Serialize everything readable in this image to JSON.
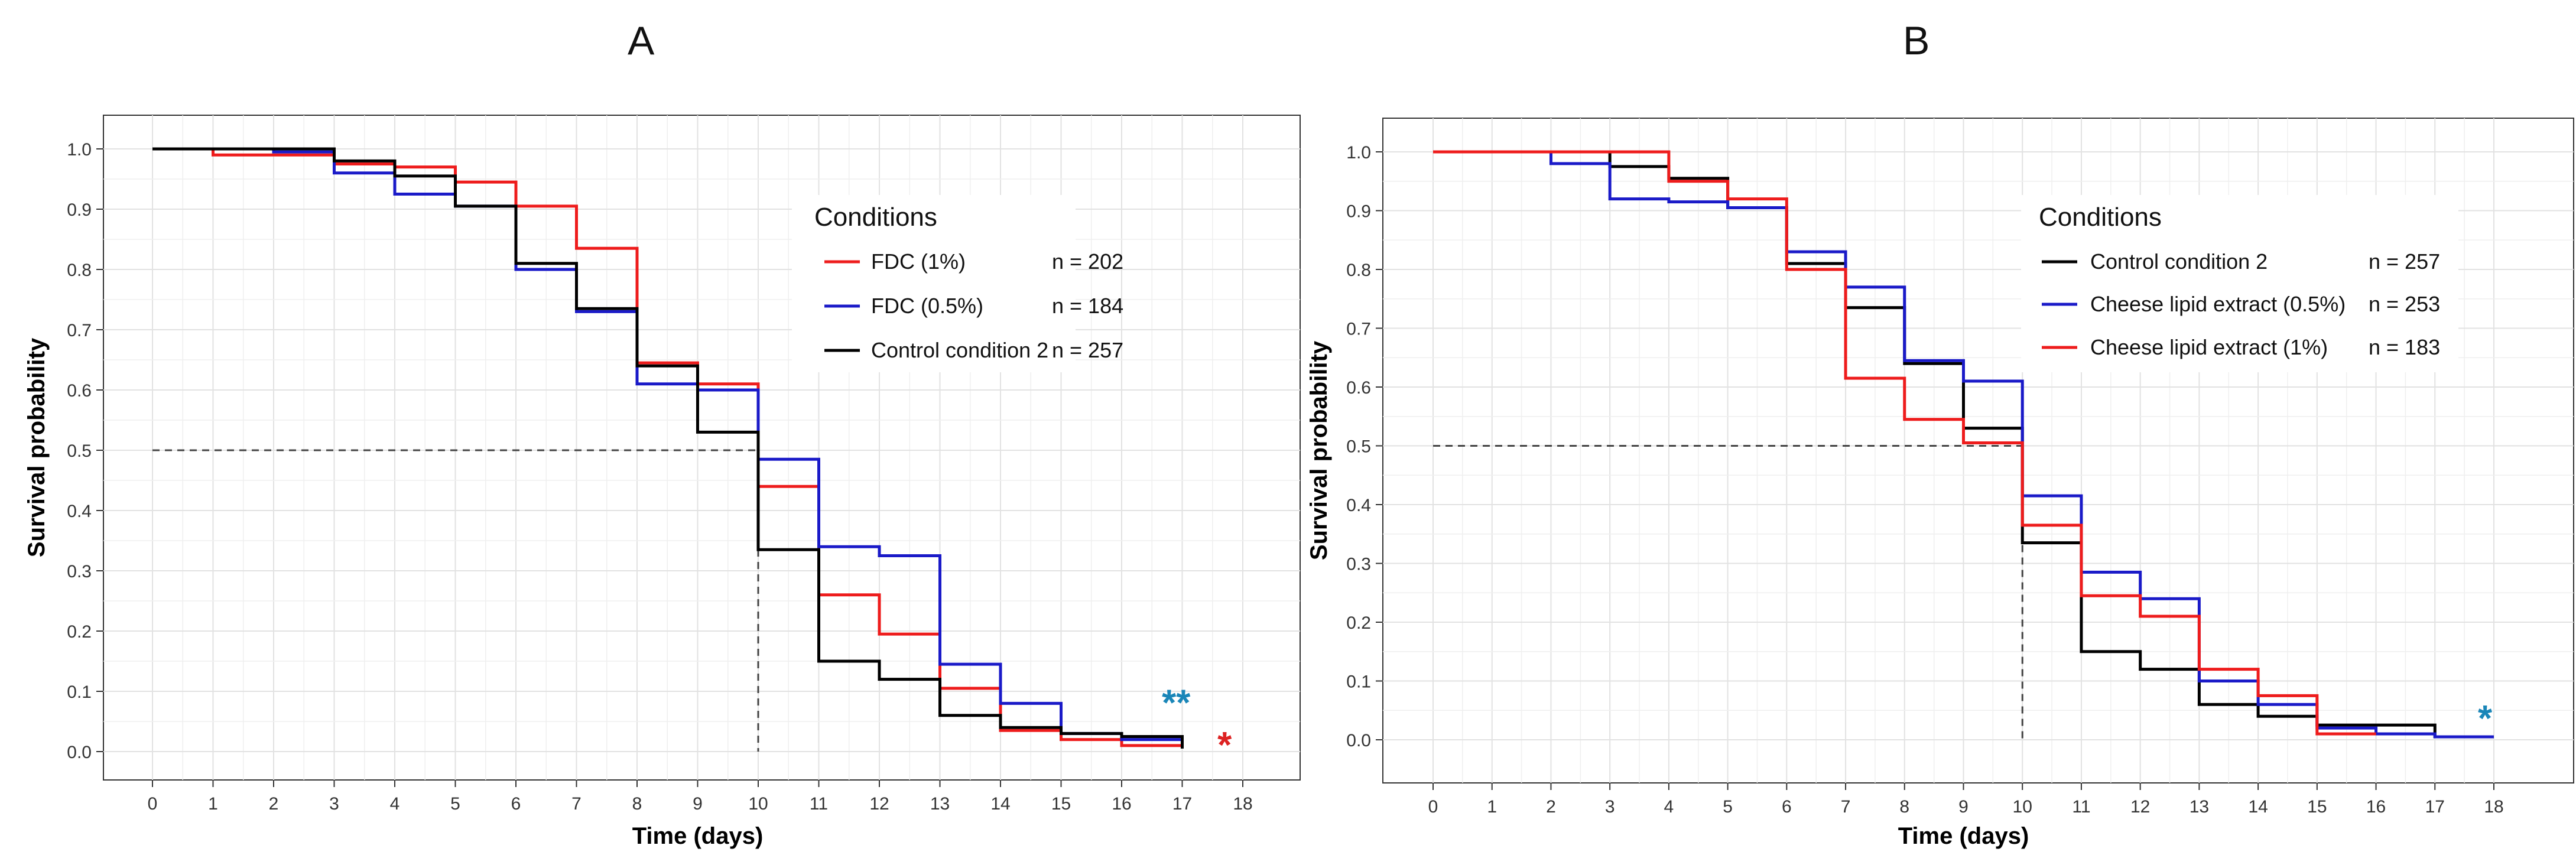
{
  "colors": {
    "red": "#ee1c1c",
    "blue": "#1a1ac8",
    "black": "#000000",
    "teal": "#1a86b8",
    "sig_red": "#dd2222"
  },
  "chart_data": [
    {
      "type": "line",
      "panel": "A",
      "xlabel": "Time (days)",
      "ylabel": "Survival probability",
      "xlim": [
        0,
        18
      ],
      "ylim": [
        0,
        1.0
      ],
      "xticks": [
        "0",
        "1",
        "2",
        "3",
        "4",
        "5",
        "6",
        "7",
        "8",
        "9",
        "10",
        "11",
        "12",
        "13",
        "14",
        "15",
        "16",
        "17",
        "18"
      ],
      "yticks": [
        "0.0",
        "0.1",
        "0.2",
        "0.3",
        "0.4",
        "0.5",
        "0.6",
        "0.7",
        "0.8",
        "0.9",
        "1.0"
      ],
      "grid": true,
      "legend_title": "Conditions",
      "legend_position": "top-right",
      "median_line": {
        "y": 0.5,
        "x": 10
      },
      "series": [
        {
          "name": "FDC (1%)",
          "n_label": "n = 202",
          "color": "red",
          "steps": [
            [
              0,
              1.0
            ],
            [
              1,
              0.99
            ],
            [
              3,
              0.975
            ],
            [
              4,
              0.97
            ],
            [
              5,
              0.945
            ],
            [
              6,
              0.905
            ],
            [
              7,
              0.835
            ],
            [
              8,
              0.645
            ],
            [
              9,
              0.61
            ],
            [
              10,
              0.44
            ],
            [
              11,
              0.26
            ],
            [
              12,
              0.195
            ],
            [
              13,
              0.105
            ],
            [
              14,
              0.035
            ],
            [
              15,
              0.02
            ],
            [
              16,
              0.01
            ],
            [
              17,
              0.01
            ]
          ]
        },
        {
          "name": "FDC (0.5%)",
          "n_label": "n = 184",
          "color": "blue",
          "steps": [
            [
              0,
              1.0
            ],
            [
              2,
              0.995
            ],
            [
              3,
              0.96
            ],
            [
              4,
              0.925
            ],
            [
              5,
              0.905
            ],
            [
              6,
              0.8
            ],
            [
              7,
              0.73
            ],
            [
              8,
              0.61
            ],
            [
              9,
              0.6
            ],
            [
              10,
              0.485
            ],
            [
              11,
              0.34
            ],
            [
              12,
              0.325
            ],
            [
              13,
              0.145
            ],
            [
              14,
              0.08
            ],
            [
              15,
              0.03
            ],
            [
              16,
              0.02
            ],
            [
              17,
              0.02
            ]
          ]
        },
        {
          "name": "Control condition 2",
          "n_label": "n = 257",
          "color": "black",
          "steps": [
            [
              0,
              1.0
            ],
            [
              3,
              0.98
            ],
            [
              4,
              0.955
            ],
            [
              5,
              0.905
            ],
            [
              6,
              0.81
            ],
            [
              7,
              0.735
            ],
            [
              8,
              0.64
            ],
            [
              9,
              0.53
            ],
            [
              10,
              0.335
            ],
            [
              11,
              0.15
            ],
            [
              12,
              0.12
            ],
            [
              13,
              0.06
            ],
            [
              14,
              0.04
            ],
            [
              15,
              0.03
            ],
            [
              16,
              0.025
            ],
            [
              17,
              0.005
            ]
          ]
        }
      ],
      "legend_order": [
        0,
        1,
        2
      ],
      "annotations": [
        {
          "text": "**",
          "x": 16.9,
          "y": 0.08,
          "color": "teal"
        },
        {
          "text": "*",
          "x": 17.7,
          "y": 0.01,
          "color": "sig_red"
        }
      ]
    },
    {
      "type": "line",
      "panel": "B",
      "xlabel": "Time (days)",
      "ylabel": "Survival probability",
      "xlim": [
        0,
        18
      ],
      "ylim": [
        0,
        1.0
      ],
      "xticks": [
        "0",
        "1",
        "2",
        "3",
        "4",
        "5",
        "6",
        "7",
        "8",
        "9",
        "10",
        "11",
        "12",
        "13",
        "14",
        "15",
        "16",
        "17",
        "18"
      ],
      "yticks": [
        "0.0",
        "0.1",
        "0.2",
        "0.3",
        "0.4",
        "0.5",
        "0.6",
        "0.7",
        "0.8",
        "0.9",
        "1.0"
      ],
      "grid": true,
      "legend_title": "Conditions",
      "legend_position": "top-right",
      "median_line": {
        "y": 0.5,
        "x": 10
      },
      "series": [
        {
          "name": "Control condition 2",
          "n_label": "n = 257",
          "color": "black",
          "steps": [
            [
              0,
              1.0
            ],
            [
              3,
              0.975
            ],
            [
              4,
              0.955
            ],
            [
              5,
              0.905
            ],
            [
              6,
              0.81
            ],
            [
              7,
              0.735
            ],
            [
              8,
              0.64
            ],
            [
              9,
              0.53
            ],
            [
              10,
              0.335
            ],
            [
              11,
              0.15
            ],
            [
              12,
              0.12
            ],
            [
              13,
              0.06
            ],
            [
              14,
              0.04
            ],
            [
              15,
              0.025
            ],
            [
              17,
              0.005
            ],
            [
              18,
              0.005
            ]
          ]
        },
        {
          "name": "Cheese lipid extract (0.5%)",
          "n_label": "n = 253",
          "color": "blue",
          "steps": [
            [
              0,
              1.0
            ],
            [
              2,
              0.98
            ],
            [
              3,
              0.92
            ],
            [
              4,
              0.915
            ],
            [
              5,
              0.905
            ],
            [
              6,
              0.83
            ],
            [
              7,
              0.77
            ],
            [
              8,
              0.645
            ],
            [
              9,
              0.61
            ],
            [
              10,
              0.415
            ],
            [
              11,
              0.285
            ],
            [
              12,
              0.24
            ],
            [
              13,
              0.1
            ],
            [
              14,
              0.06
            ],
            [
              15,
              0.02
            ],
            [
              16,
              0.01
            ],
            [
              17,
              0.005
            ],
            [
              18,
              0.005
            ]
          ]
        },
        {
          "name": "Cheese lipid extract (1%)",
          "n_label": "n = 183",
          "color": "red",
          "steps": [
            [
              0,
              1.0
            ],
            [
              4,
              0.95
            ],
            [
              5,
              0.92
            ],
            [
              6,
              0.8
            ],
            [
              7,
              0.615
            ],
            [
              8,
              0.545
            ],
            [
              9,
              0.505
            ],
            [
              10,
              0.365
            ],
            [
              11,
              0.245
            ],
            [
              12,
              0.21
            ],
            [
              13,
              0.12
            ],
            [
              14,
              0.075
            ],
            [
              15,
              0.01
            ],
            [
              16,
              0.01
            ]
          ]
        }
      ],
      "legend_order": [
        0,
        1,
        2
      ],
      "annotations": [
        {
          "text": "*",
          "x": 17.85,
          "y": 0.035,
          "color": "teal"
        }
      ]
    }
  ]
}
